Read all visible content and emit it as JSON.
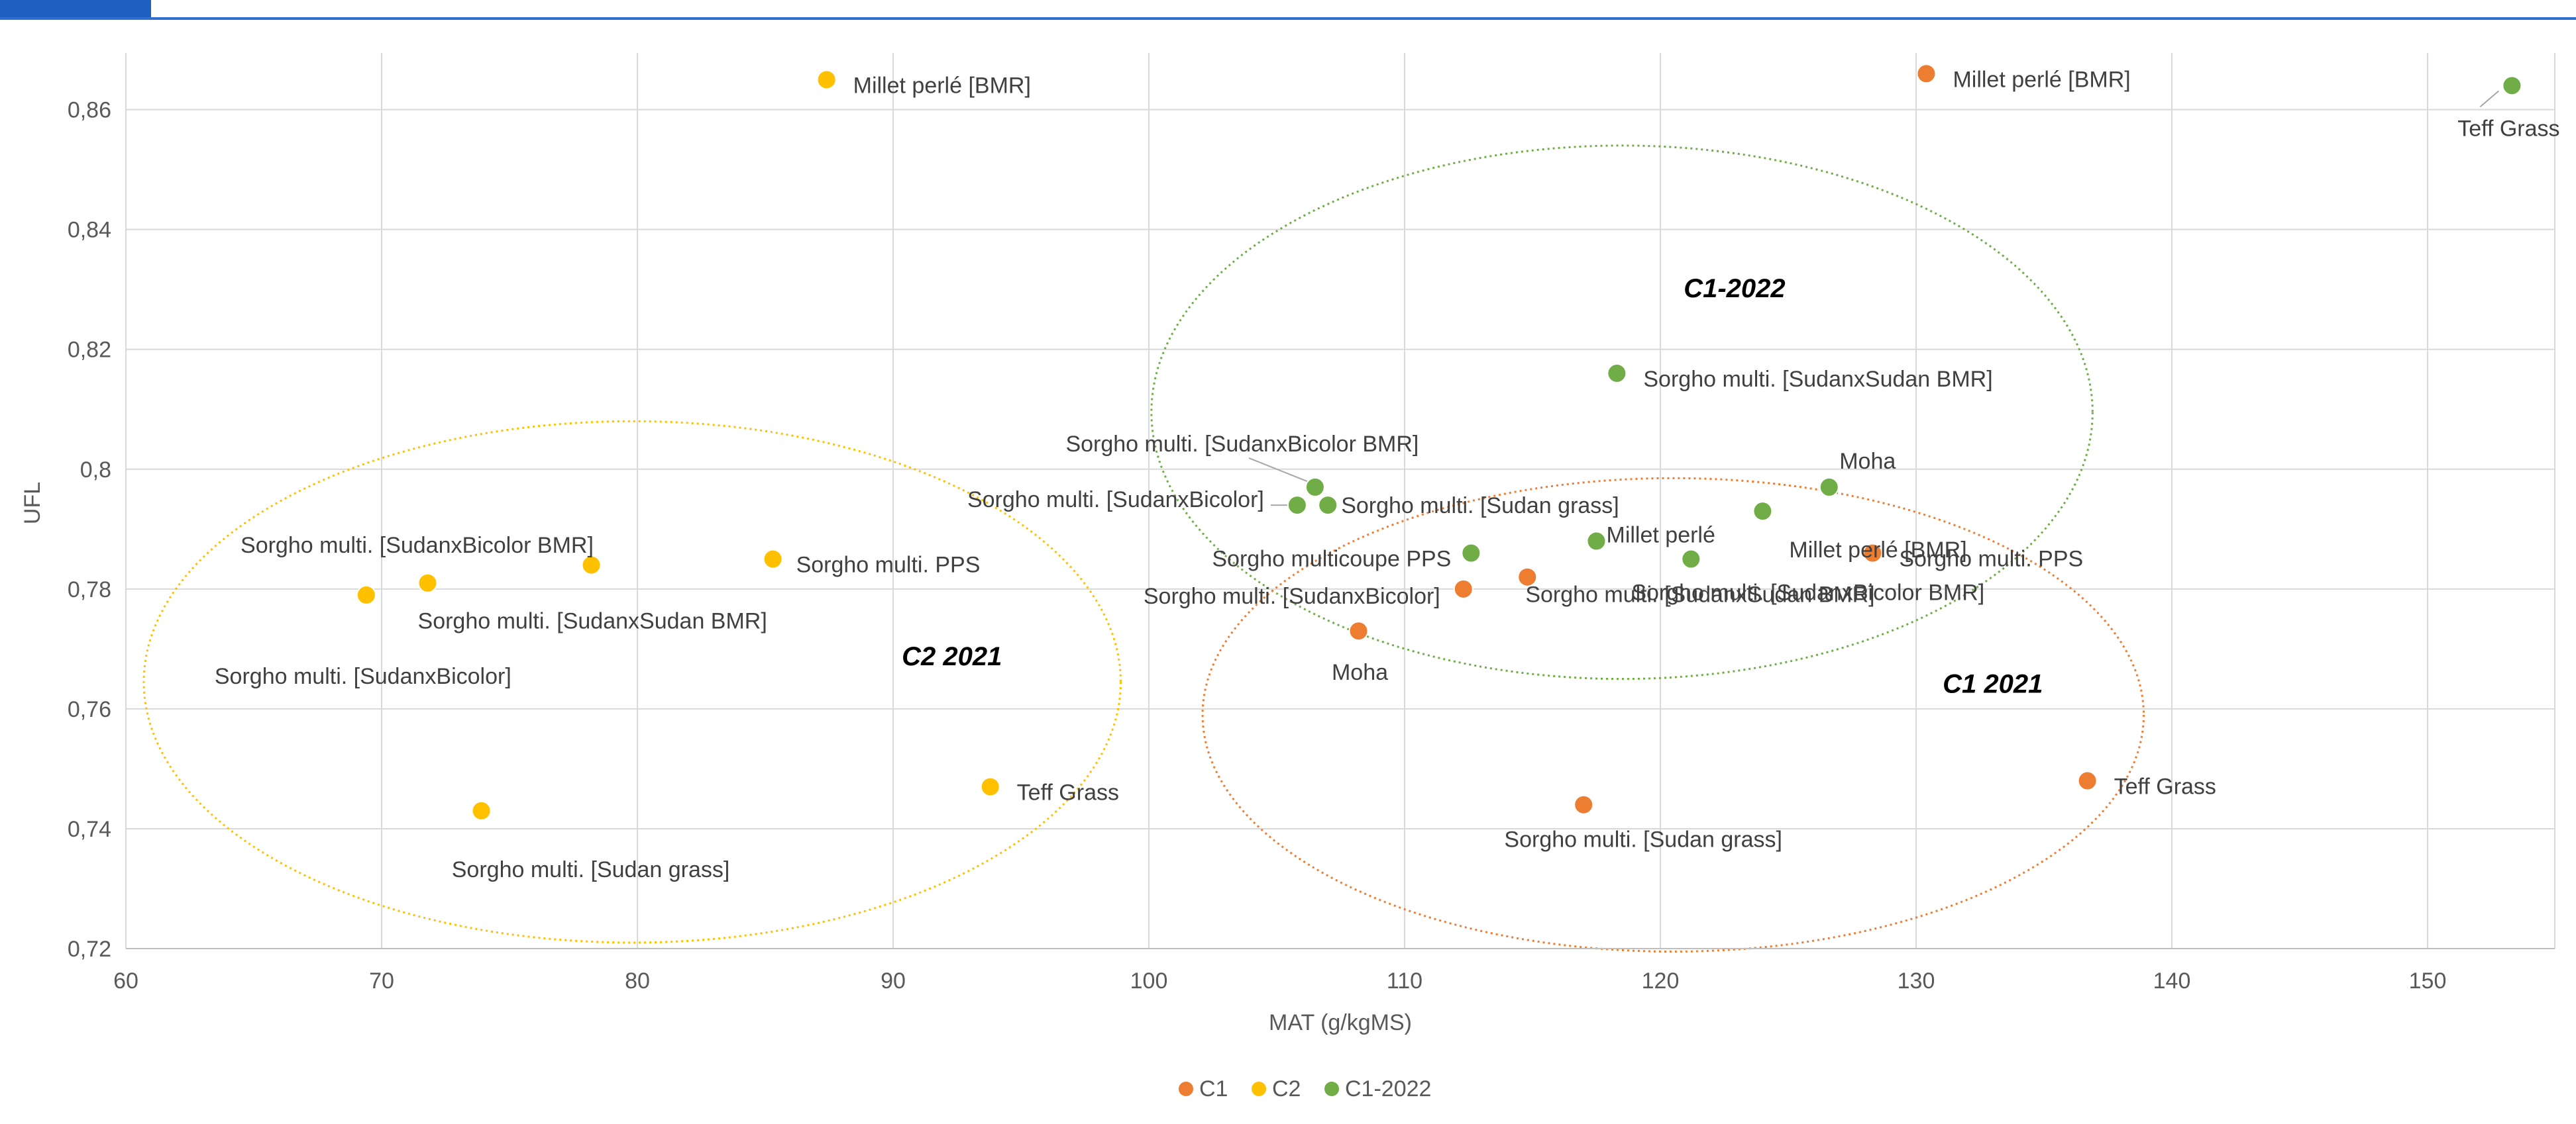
{
  "colors": {
    "C1": "#ed7d31",
    "C2": "#ffc000",
    "C1-2022": "#70ad47",
    "grid": "#d9d9d9",
    "axis": "#bfbfbf",
    "topbar": "#1f5fbf"
  },
  "chart_data": {
    "type": "scatter",
    "xlabel": "MAT (g/kgMS)",
    "ylabel": "UFL",
    "xlim": [
      60,
      155
    ],
    "ylim": [
      0.72,
      0.87
    ],
    "x_ticks": [
      60,
      70,
      80,
      90,
      100,
      110,
      120,
      130,
      140,
      150
    ],
    "x_tick_labels": [
      "60",
      "70",
      "80",
      "90",
      "100",
      "110",
      "120",
      "130",
      "140",
      "150"
    ],
    "y_ticks": [
      0.72,
      0.74,
      0.76,
      0.78,
      0.8,
      0.82,
      0.84,
      0.86
    ],
    "y_tick_labels": [
      "0,72",
      "0,74",
      "0,76",
      "0,78",
      "0,8",
      "0,82",
      "0,84",
      "0,86"
    ],
    "grid": true,
    "legend_position": "bottom",
    "series": [
      {
        "name": "C1",
        "color_key": "C1",
        "points": [
          {
            "x": 130.4,
            "y": 0.866,
            "label": "Millet perlé [BMR]"
          },
          {
            "x": 108.2,
            "y": 0.773,
            "label": "Moha"
          },
          {
            "x": 112.3,
            "y": 0.78,
            "label": "Sorgho multi. [SudanxBicolor]"
          },
          {
            "x": 114.8,
            "y": 0.782,
            "label": ""
          },
          {
            "x": 121.2,
            "y": 0.785,
            "label": "Sorgho multi. [SudanxBicolor BMR]"
          },
          {
            "x": 128.3,
            "y": 0.786,
            "label": "Sorgho multi. PPS"
          },
          {
            "x": 117.0,
            "y": 0.744,
            "label": "Sorgho multi. [Sudan grass]"
          },
          {
            "x": 136.7,
            "y": 0.748,
            "label": "Teff Grass"
          }
        ]
      },
      {
        "name": "C2",
        "color_key": "C2",
        "points": [
          {
            "x": 87.4,
            "y": 0.865,
            "label": "Millet perlé [BMR]"
          },
          {
            "x": 69.4,
            "y": 0.779,
            "label": "Sorgho multi. [SudanxBicolor]"
          },
          {
            "x": 71.8,
            "y": 0.781,
            "label": "Sorgho multi. [SudanxBicolor BMR]"
          },
          {
            "x": 78.2,
            "y": 0.784,
            "label": "Sorgho multi. [SudanxSudan BMR]"
          },
          {
            "x": 85.3,
            "y": 0.785,
            "label": "Sorgho multi. PPS"
          },
          {
            "x": 73.9,
            "y": 0.743,
            "label": "Sorgho multi. [Sudan grass]"
          },
          {
            "x": 93.8,
            "y": 0.747,
            "label": "Teff Grass"
          }
        ]
      },
      {
        "name": "C1-2022",
        "color_key": "C1-2022",
        "points": [
          {
            "x": 153.3,
            "y": 0.864,
            "label": "Teff Grass"
          },
          {
            "x": 118.3,
            "y": 0.816,
            "label": "Sorgho multi. [SudanxSudan BMR]"
          },
          {
            "x": 106.5,
            "y": 0.797,
            "label": "Sorgho multi. [SudanxBicolor BMR]"
          },
          {
            "x": 105.8,
            "y": 0.794,
            "label": "Sorgho multi. [SudanxBicolor]"
          },
          {
            "x": 107.0,
            "y": 0.794,
            "label": "Sorgho multi. [Sudan grass]"
          },
          {
            "x": 126.6,
            "y": 0.797,
            "label": "Moha"
          },
          {
            "x": 124.0,
            "y": 0.793,
            "label": "Millet perlé [BMR]"
          },
          {
            "x": 112.6,
            "y": 0.786,
            "label": "Sorgho multicoupe PPS"
          },
          {
            "x": 117.5,
            "y": 0.788,
            "label": "Millet perlé"
          },
          {
            "x": 121.2,
            "y": 0.785,
            "label": "Sorgho multi. [SudanxSudan BMR]"
          }
        ]
      }
    ],
    "annotations": [
      {
        "text": "C1-2022",
        "color_key": "C1-2022"
      },
      {
        "text": "C2 2021",
        "color_key": "C2"
      },
      {
        "text": "C1 2021",
        "color_key": "C1"
      }
    ]
  }
}
